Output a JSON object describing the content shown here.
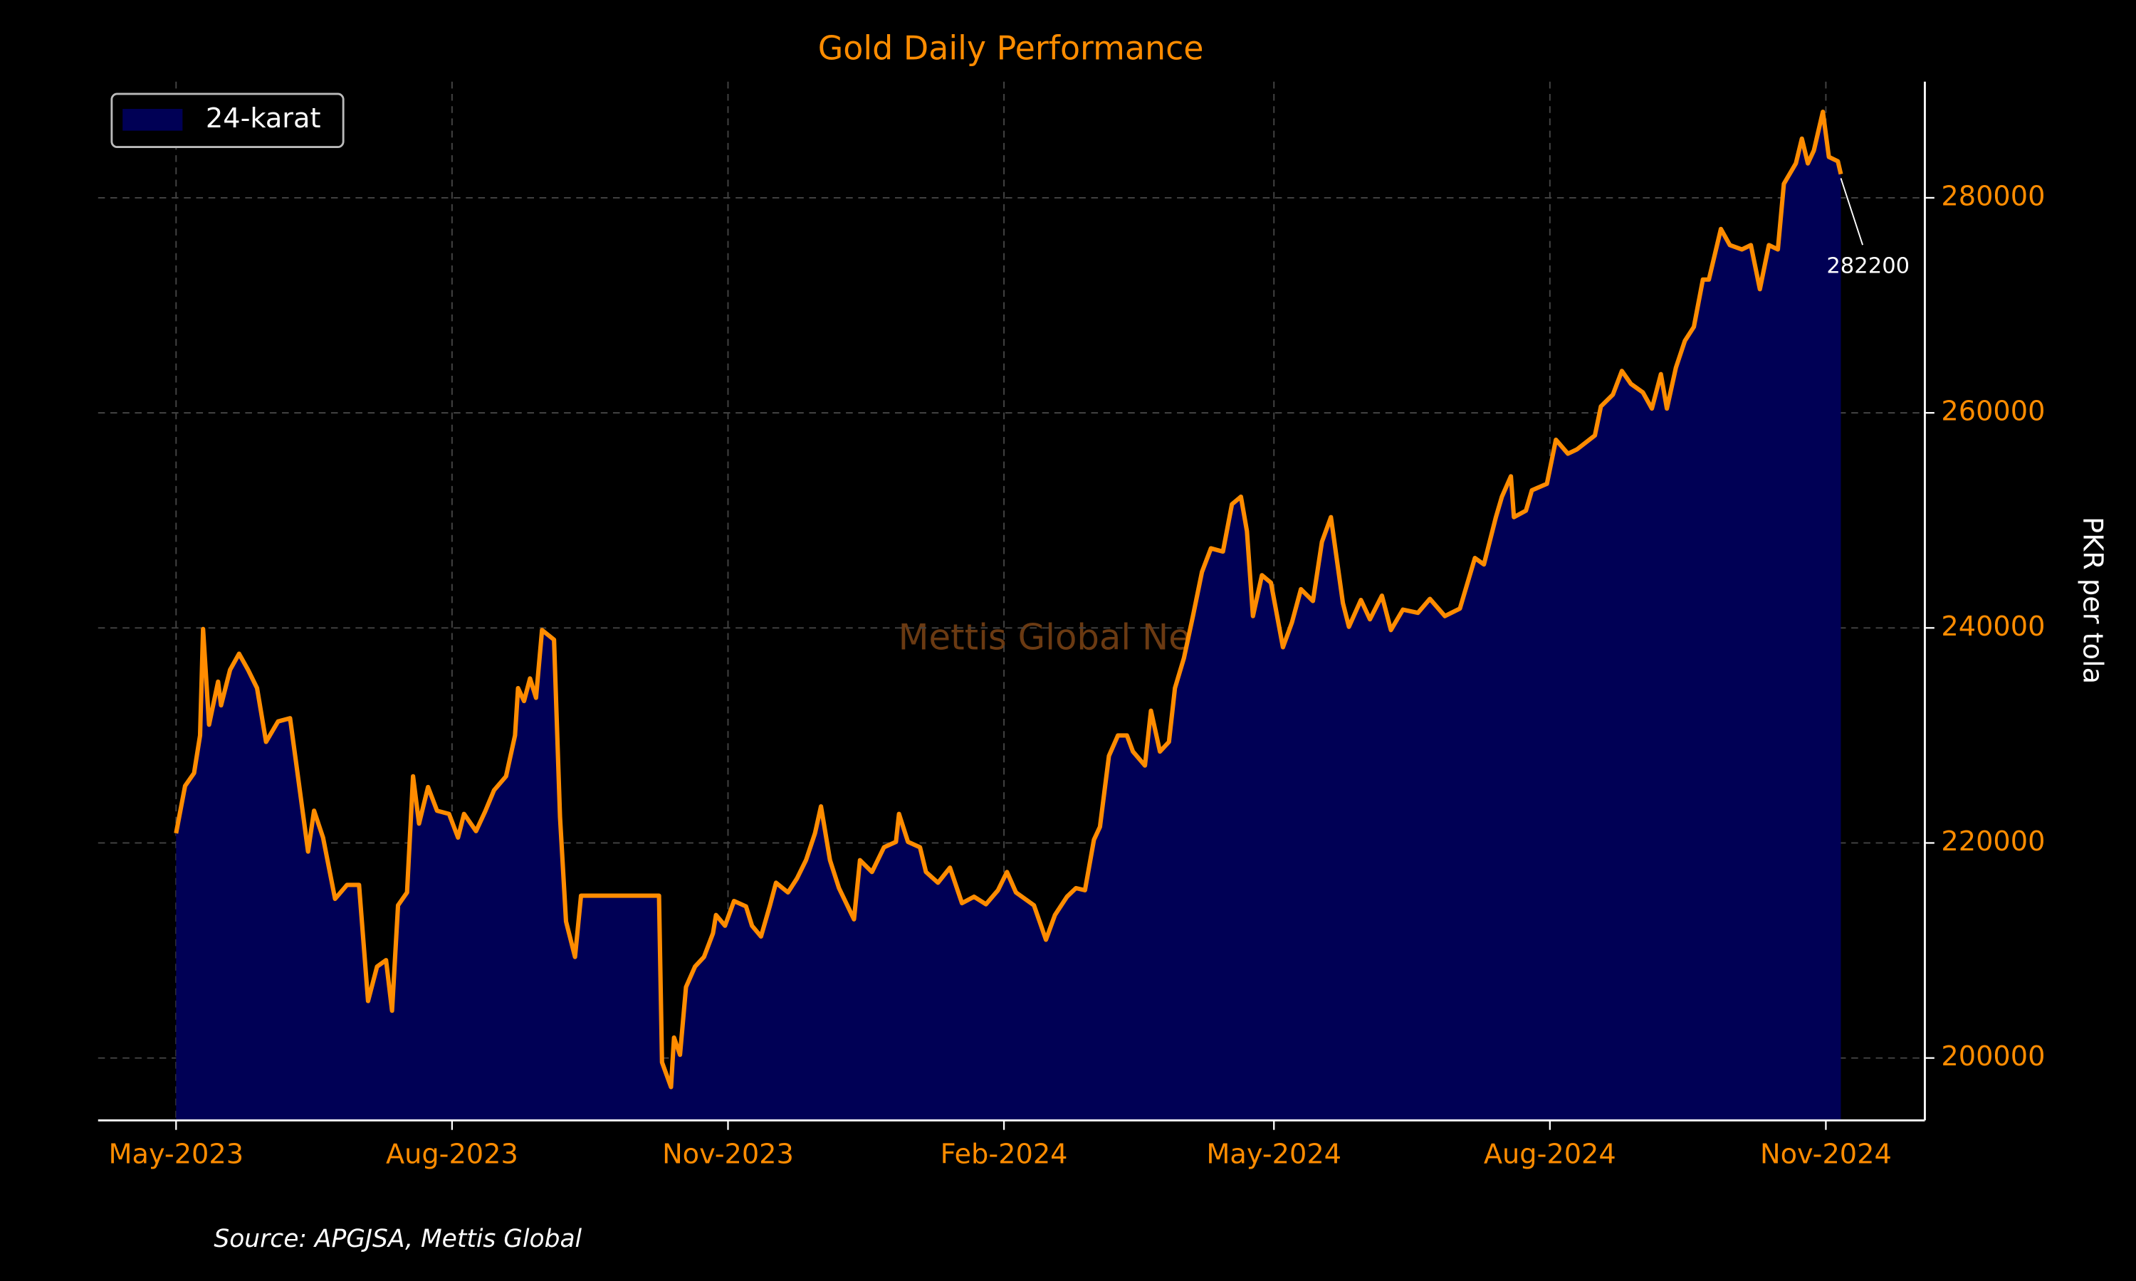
{
  "chart_data": {
    "type": "area",
    "title": "Gold Daily Performance",
    "y_label": "PKR per tola",
    "watermark": "Mettis Global News",
    "source": "Source: APGJSA, Mettis Global",
    "annotation": "282200",
    "legend": "upper left",
    "grid": true,
    "series": [
      {
        "name": "24-karat",
        "color": "#ff8c00",
        "fill": "#000055",
        "x": [
          "2023-05-01",
          "2023-05-04",
          "2023-05-07",
          "2023-05-09",
          "2023-05-10",
          "2023-05-12",
          "2023-05-15",
          "2023-05-16",
          "2023-05-19",
          "2023-05-22",
          "2023-05-25",
          "2023-05-28",
          "2023-05-31",
          "2023-06-04",
          "2023-06-08",
          "2023-06-10",
          "2023-06-14",
          "2023-06-16",
          "2023-06-19",
          "2023-06-23",
          "2023-06-27",
          "2023-07-01",
          "2023-07-04",
          "2023-07-07",
          "2023-07-10",
          "2023-07-12",
          "2023-07-14",
          "2023-07-17",
          "2023-07-19",
          "2023-07-21",
          "2023-07-24",
          "2023-07-27",
          "2023-07-31",
          "2023-08-03",
          "2023-08-05",
          "2023-08-09",
          "2023-08-12",
          "2023-08-15",
          "2023-08-19",
          "2023-08-22",
          "2023-08-23",
          "2023-08-25",
          "2023-08-27",
          "2023-08-29",
          "2023-08-31",
          "2023-09-04",
          "2023-09-06",
          "2023-09-08",
          "2023-09-11",
          "2023-09-13",
          "2023-10-09",
          "2023-10-10",
          "2023-10-13",
          "2023-10-14",
          "2023-10-16",
          "2023-10-18",
          "2023-10-21",
          "2023-10-24",
          "2023-10-27",
          "2023-10-28",
          "2023-10-31",
          "2023-11-03",
          "2023-11-07",
          "2023-11-09",
          "2023-11-12",
          "2023-11-15",
          "2023-11-17",
          "2023-11-21",
          "2023-11-24",
          "2023-11-27",
          "2023-11-30",
          "2023-12-02",
          "2023-12-05",
          "2023-12-08",
          "2023-12-13",
          "2023-12-15",
          "2023-12-19",
          "2023-12-23",
          "2023-12-27",
          "2023-12-28",
          "2023-12-31",
          "2024-01-04",
          "2024-01-06",
          "2024-01-10",
          "2024-01-14",
          "2024-01-18",
          "2024-01-22",
          "2024-01-26",
          "2024-01-30",
          "2024-02-02",
          "2024-02-05",
          "2024-02-11",
          "2024-02-15",
          "2024-02-18",
          "2024-02-22",
          "2024-02-25",
          "2024-02-28",
          "2024-03-02",
          "2024-03-04",
          "2024-03-07",
          "2024-03-10",
          "2024-03-13",
          "2024-03-15",
          "2024-03-19",
          "2024-03-21",
          "2024-03-24",
          "2024-03-27",
          "2024-03-29",
          "2024-04-01",
          "2024-04-04",
          "2024-04-07",
          "2024-04-10",
          "2024-04-14",
          "2024-04-17",
          "2024-04-20",
          "2024-04-22",
          "2024-04-24",
          "2024-04-27",
          "2024-04-30",
          "2024-05-04",
          "2024-05-07",
          "2024-05-10",
          "2024-05-14",
          "2024-05-17",
          "2024-05-20",
          "2024-05-24",
          "2024-05-26",
          "2024-05-30",
          "2024-06-02",
          "2024-06-06",
          "2024-06-09",
          "2024-06-13",
          "2024-06-18",
          "2024-06-22",
          "2024-06-27",
          "2024-07-02",
          "2024-07-07",
          "2024-07-10",
          "2024-07-14",
          "2024-07-16",
          "2024-07-19",
          "2024-07-20",
          "2024-07-24",
          "2024-07-26",
          "2024-07-31",
          "2024-08-03",
          "2024-08-07",
          "2024-08-10",
          "2024-08-16",
          "2024-08-18",
          "2024-08-22",
          "2024-08-25",
          "2024-08-28",
          "2024-09-01",
          "2024-09-04",
          "2024-09-07",
          "2024-09-09",
          "2024-09-12",
          "2024-09-15",
          "2024-09-18",
          "2024-09-21",
          "2024-09-23",
          "2024-09-27",
          "2024-09-30",
          "2024-10-04",
          "2024-10-07",
          "2024-10-10",
          "2024-10-13",
          "2024-10-16",
          "2024-10-18",
          "2024-10-22",
          "2024-10-24",
          "2024-10-26",
          "2024-10-28",
          "2024-10-31",
          "2024-11-02",
          "2024-11-05",
          "2024-11-06"
        ],
        "values": [
          220900,
          225300,
          226500,
          230000,
          239900,
          231000,
          235000,
          232800,
          236100,
          237600,
          236100,
          234400,
          229400,
          231300,
          231600,
          227500,
          219200,
          223000,
          220500,
          214800,
          216100,
          216100,
          205300,
          208500,
          209100,
          204400,
          214200,
          215400,
          226200,
          221800,
          225200,
          223000,
          222700,
          220500,
          222700,
          221100,
          222900,
          224900,
          226200,
          230000,
          234400,
          233200,
          235300,
          233500,
          239800,
          238900,
          222400,
          212700,
          209400,
          215100,
          215100,
          199600,
          197300,
          201900,
          200300,
          206600,
          208500,
          209400,
          211600,
          213300,
          212300,
          214600,
          214100,
          212300,
          211300,
          214200,
          216300,
          215400,
          216700,
          218400,
          220900,
          223400,
          218400,
          215800,
          212900,
          218400,
          217300,
          219600,
          220100,
          222700,
          220100,
          219600,
          217300,
          216300,
          217700,
          214400,
          215000,
          214300,
          215600,
          217300,
          215400,
          214200,
          211000,
          213300,
          215000,
          215800,
          215600,
          220300,
          221500,
          228100,
          230000,
          230000,
          228500,
          227200,
          232300,
          228500,
          229400,
          234400,
          237200,
          241100,
          245200,
          247400,
          247100,
          251500,
          252200,
          249000,
          241100,
          244900,
          244200,
          238200,
          240500,
          243600,
          242500,
          248000,
          250300,
          242300,
          240100,
          242600,
          240800,
          243000,
          239800,
          241700,
          241400,
          242700,
          241100,
          241800,
          246500,
          245900,
          250300,
          252200,
          254100,
          250300,
          250900,
          252800,
          253400,
          257500,
          256200,
          256600,
          257900,
          260600,
          261700,
          263900,
          262700,
          261900,
          260400,
          263600,
          260400,
          264200,
          266700,
          268000,
          272400,
          272400,
          277100,
          275600,
          275200,
          275600,
          271500,
          275600,
          275200,
          281300,
          283200,
          285500,
          283200,
          284400,
          288000,
          283800,
          283400,
          282200
        ]
      }
    ],
    "xlim": [
      "2023-04-05",
      "2024-12-04"
    ],
    "xticks": [
      {
        "value": "2023-05-01",
        "label": "May-2023"
      },
      {
        "value": "2023-08-01",
        "label": "Aug-2023"
      },
      {
        "value": "2023-11-01",
        "label": "Nov-2023"
      },
      {
        "value": "2024-02-01",
        "label": "Feb-2024"
      },
      {
        "value": "2024-05-01",
        "label": "May-2024"
      },
      {
        "value": "2024-08-01",
        "label": "Aug-2024"
      },
      {
        "value": "2024-11-01",
        "label": "Nov-2024"
      }
    ],
    "ylim": [
      194200,
      290800
    ],
    "yticks": [
      200000,
      220000,
      240000,
      260000,
      280000
    ]
  }
}
